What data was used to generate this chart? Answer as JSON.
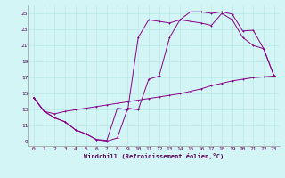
{
  "xlabel": "Windchill (Refroidissement éolien,°C)",
  "bg_color": "#d4f5f5",
  "grid_color": "#b8e8e8",
  "line_color": "#880088",
  "xlim": [
    -0.5,
    23.5
  ],
  "ylim": [
    8.5,
    26.0
  ],
  "xticks": [
    0,
    1,
    2,
    3,
    4,
    5,
    6,
    7,
    8,
    9,
    10,
    11,
    12,
    13,
    14,
    15,
    16,
    17,
    18,
    19,
    20,
    21,
    22,
    23
  ],
  "yticks": [
    9,
    11,
    13,
    15,
    17,
    19,
    21,
    23,
    25
  ],
  "curve1_x": [
    0,
    1,
    2,
    3,
    4,
    5,
    6,
    7,
    8,
    9,
    10,
    11,
    12,
    13,
    14,
    15,
    16,
    17,
    18,
    19,
    20,
    21,
    22,
    23
  ],
  "curve1_y": [
    14.5,
    12.8,
    12.0,
    11.5,
    10.5,
    10.0,
    9.3,
    9.1,
    9.5,
    13.2,
    13.0,
    16.8,
    17.2,
    22.0,
    24.2,
    24.0,
    23.8,
    23.5,
    25.0,
    24.2,
    22.0,
    21.0,
    20.6,
    17.2
  ],
  "curve2_x": [
    0,
    1,
    2,
    3,
    4,
    5,
    6,
    7,
    8,
    9,
    10,
    11,
    12,
    13,
    14,
    15,
    16,
    17,
    18,
    19,
    20,
    21,
    22,
    23
  ],
  "curve2_y": [
    14.5,
    12.8,
    12.0,
    11.5,
    10.5,
    10.0,
    9.3,
    9.2,
    13.2,
    13.0,
    22.0,
    24.2,
    24.0,
    23.8,
    24.2,
    25.2,
    25.2,
    25.0,
    25.2,
    24.9,
    22.8,
    22.9,
    20.6,
    17.2
  ],
  "curve3_x": [
    0,
    1,
    2,
    3,
    4,
    5,
    6,
    7,
    8,
    9,
    10,
    11,
    12,
    13,
    14,
    15,
    16,
    17,
    18,
    19,
    20,
    21,
    22,
    23
  ],
  "curve3_y": [
    14.5,
    12.8,
    12.5,
    12.8,
    13.0,
    13.2,
    13.4,
    13.6,
    13.8,
    14.0,
    14.2,
    14.4,
    14.6,
    14.8,
    15.0,
    15.3,
    15.6,
    16.0,
    16.3,
    16.6,
    16.8,
    17.0,
    17.1,
    17.2
  ]
}
